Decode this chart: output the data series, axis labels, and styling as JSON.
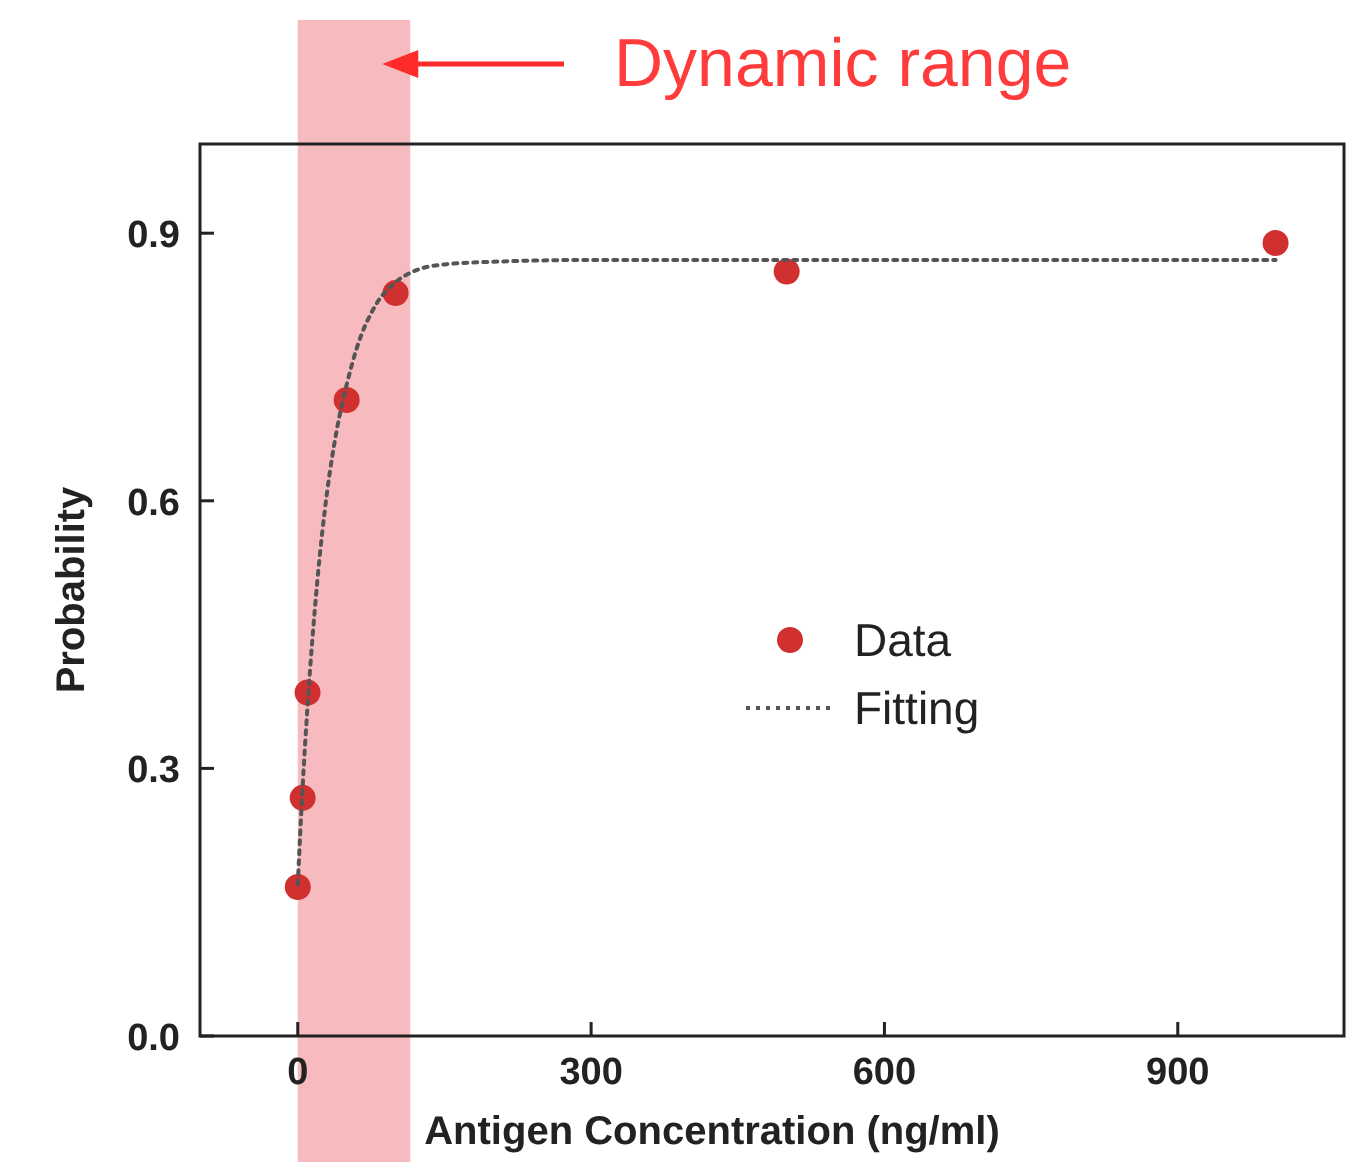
{
  "chart_data": {
    "type": "scatter",
    "xlabel": "Antigen Concentration (ng/ml)",
    "ylabel": "Probability",
    "xlim": [
      -100,
      1070
    ],
    "ylim": [
      0,
      1.0
    ],
    "xticks": [
      0,
      300,
      600,
      900
    ],
    "yticks": [
      {
        "value": 0,
        "label": "0.0"
      },
      0.3,
      0.6,
      0.9
    ],
    "marker": "circle",
    "legend": "right",
    "grid": false,
    "bands": [
      {
        "axis": "x",
        "from": 0,
        "to": 115,
        "label": "Dynamic range",
        "color": "#f4a3aa"
      }
    ],
    "series": [
      {
        "name": "Data",
        "color": "#d0302f",
        "x": [
          0,
          5,
          10,
          50,
          100,
          500,
          1000
        ],
        "values": [
          0.167,
          0.267,
          0.385,
          0.713,
          0.833,
          0.857,
          0.889
        ]
      },
      {
        "name": "Fitting",
        "type": "line",
        "color": "#555555",
        "line_style": "dotted",
        "marker": "none",
        "x": [
          0,
          5,
          10,
          20,
          30,
          40,
          50,
          60,
          80,
          100,
          120,
          150,
          200,
          300,
          500,
          700,
          1000
        ],
        "values": [
          0.17,
          0.28,
          0.37,
          0.51,
          0.61,
          0.68,
          0.73,
          0.77,
          0.82,
          0.845,
          0.858,
          0.865,
          0.868,
          0.87,
          0.87,
          0.87,
          0.87
        ]
      }
    ]
  }
}
